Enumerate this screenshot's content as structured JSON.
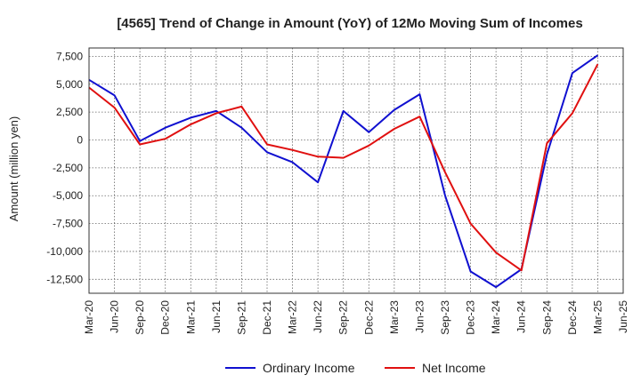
{
  "chart_data": {
    "type": "line",
    "title": "[4565]  Trend of Change in Amount (YoY) of 12Mo Moving Sum of Incomes",
    "xlabel": "",
    "ylabel": "Amount (million yen)",
    "categories": [
      "Mar-20",
      "Jun-20",
      "Sep-20",
      "Dec-20",
      "Mar-21",
      "Jun-21",
      "Sep-21",
      "Dec-21",
      "Mar-22",
      "Jun-22",
      "Sep-22",
      "Dec-22",
      "Mar-23",
      "Jun-23",
      "Sep-23",
      "Dec-23",
      "Mar-24",
      "Jun-24",
      "Sep-24",
      "Dec-24",
      "Mar-25",
      "Jun-25"
    ],
    "ylim": [
      -13750,
      8250
    ],
    "yticks": [
      7500,
      5000,
      2500,
      0,
      -2500,
      -5000,
      -7500,
      -10000,
      -12500
    ],
    "ytick_labels": [
      "7,500",
      "5,000",
      "2,500",
      "0",
      "-2,500",
      "-5,000",
      "-7,500",
      "-10,000",
      "-12,500"
    ],
    "grid": true,
    "legend_position": "bottom-center",
    "series": [
      {
        "name": "Ordinary Income",
        "color": "#1010d0",
        "values": [
          5400,
          4000,
          -100,
          1100,
          2000,
          2600,
          1100,
          -1100,
          -2000,
          -3800,
          2600,
          700,
          2700,
          4100,
          -5000,
          -11800,
          -13200,
          -11600,
          -1300,
          6000,
          7600,
          null
        ]
      },
      {
        "name": "Net Income",
        "color": "#e01010",
        "values": [
          4700,
          2900,
          -400,
          100,
          1400,
          2400,
          3000,
          -400,
          -900,
          -1500,
          -1600,
          -500,
          1000,
          2100,
          -2900,
          -7500,
          -10100,
          -11700,
          -300,
          2400,
          6800,
          null
        ]
      }
    ]
  }
}
